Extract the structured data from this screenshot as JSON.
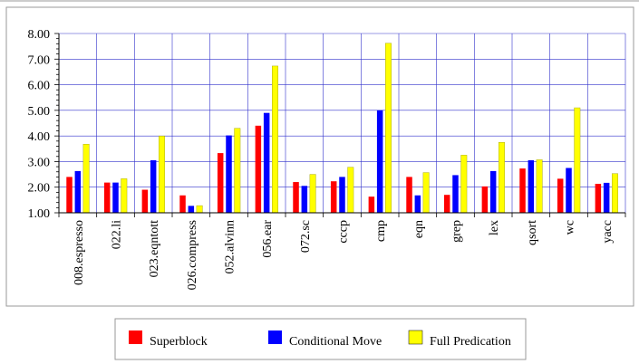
{
  "chart_data": {
    "type": "bar",
    "categories": [
      "008.espresso",
      "022.li",
      "023.eqntott",
      "026.compress",
      "052.alvinn",
      "056.ear",
      "072.sc",
      "cccp",
      "cmp",
      "eqn",
      "grep",
      "lex",
      "qsort",
      "wc",
      "yacc"
    ],
    "series": [
      {
        "name": "Superblock",
        "color": "#ff0000",
        "values": [
          2.4,
          2.18,
          1.9,
          1.68,
          3.33,
          4.4,
          2.2,
          2.23,
          1.63,
          2.4,
          1.7,
          2.03,
          2.73,
          2.33,
          2.13
        ]
      },
      {
        "name": "Conditional Move",
        "color": "#0000ff",
        "values": [
          2.63,
          2.18,
          3.05,
          1.27,
          4.02,
          4.9,
          2.05,
          2.4,
          5.0,
          1.68,
          2.47,
          2.63,
          3.05,
          2.75,
          2.17
        ]
      },
      {
        "name": "Full Predication",
        "color": "#ffff00",
        "values": [
          3.68,
          2.33,
          4.0,
          1.28,
          4.3,
          6.73,
          2.5,
          2.78,
          7.62,
          2.57,
          3.25,
          3.75,
          3.07,
          5.1,
          2.53
        ]
      }
    ],
    "yticks": [
      "1.00",
      "2.00",
      "3.00",
      "4.00",
      "5.00",
      "6.00",
      "7.00",
      "8.00"
    ],
    "ylim": [
      1,
      8
    ],
    "grid": true,
    "legend_position": "bottom"
  }
}
